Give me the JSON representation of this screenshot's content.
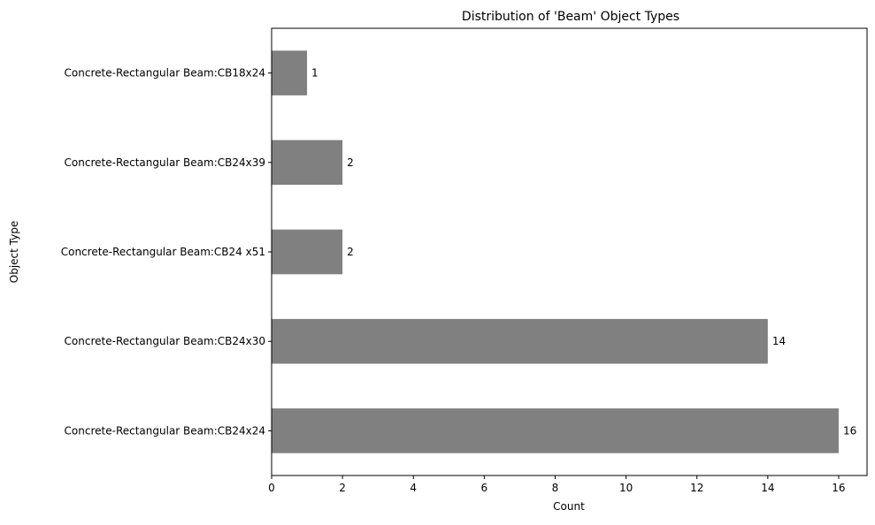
{
  "chart_data": {
    "type": "bar",
    "orientation": "horizontal",
    "title": "Distribution of 'Beam' Object Types",
    "xlabel": "Count",
    "ylabel": "Object Type",
    "categories": [
      "Concrete-Rectangular Beam:CB18x24",
      "Concrete-Rectangular Beam:CB24x39",
      "Concrete-Rectangular Beam:CB24 x51",
      "Concrete-Rectangular Beam:CB24x30",
      "Concrete-Rectangular Beam:CB24x24"
    ],
    "values": [
      1,
      2,
      2,
      14,
      16
    ],
    "data_labels": [
      "1",
      "2",
      "2",
      "14",
      "16"
    ],
    "xlim": [
      0,
      16.8
    ],
    "xticks": [
      0,
      2,
      4,
      6,
      8,
      10,
      12,
      14,
      16
    ],
    "xtick_labels": [
      "0",
      "2",
      "4",
      "6",
      "8",
      "10",
      "12",
      "14",
      "16"
    ],
    "grid": false,
    "legend": "none",
    "bar_color": "#808080"
  }
}
